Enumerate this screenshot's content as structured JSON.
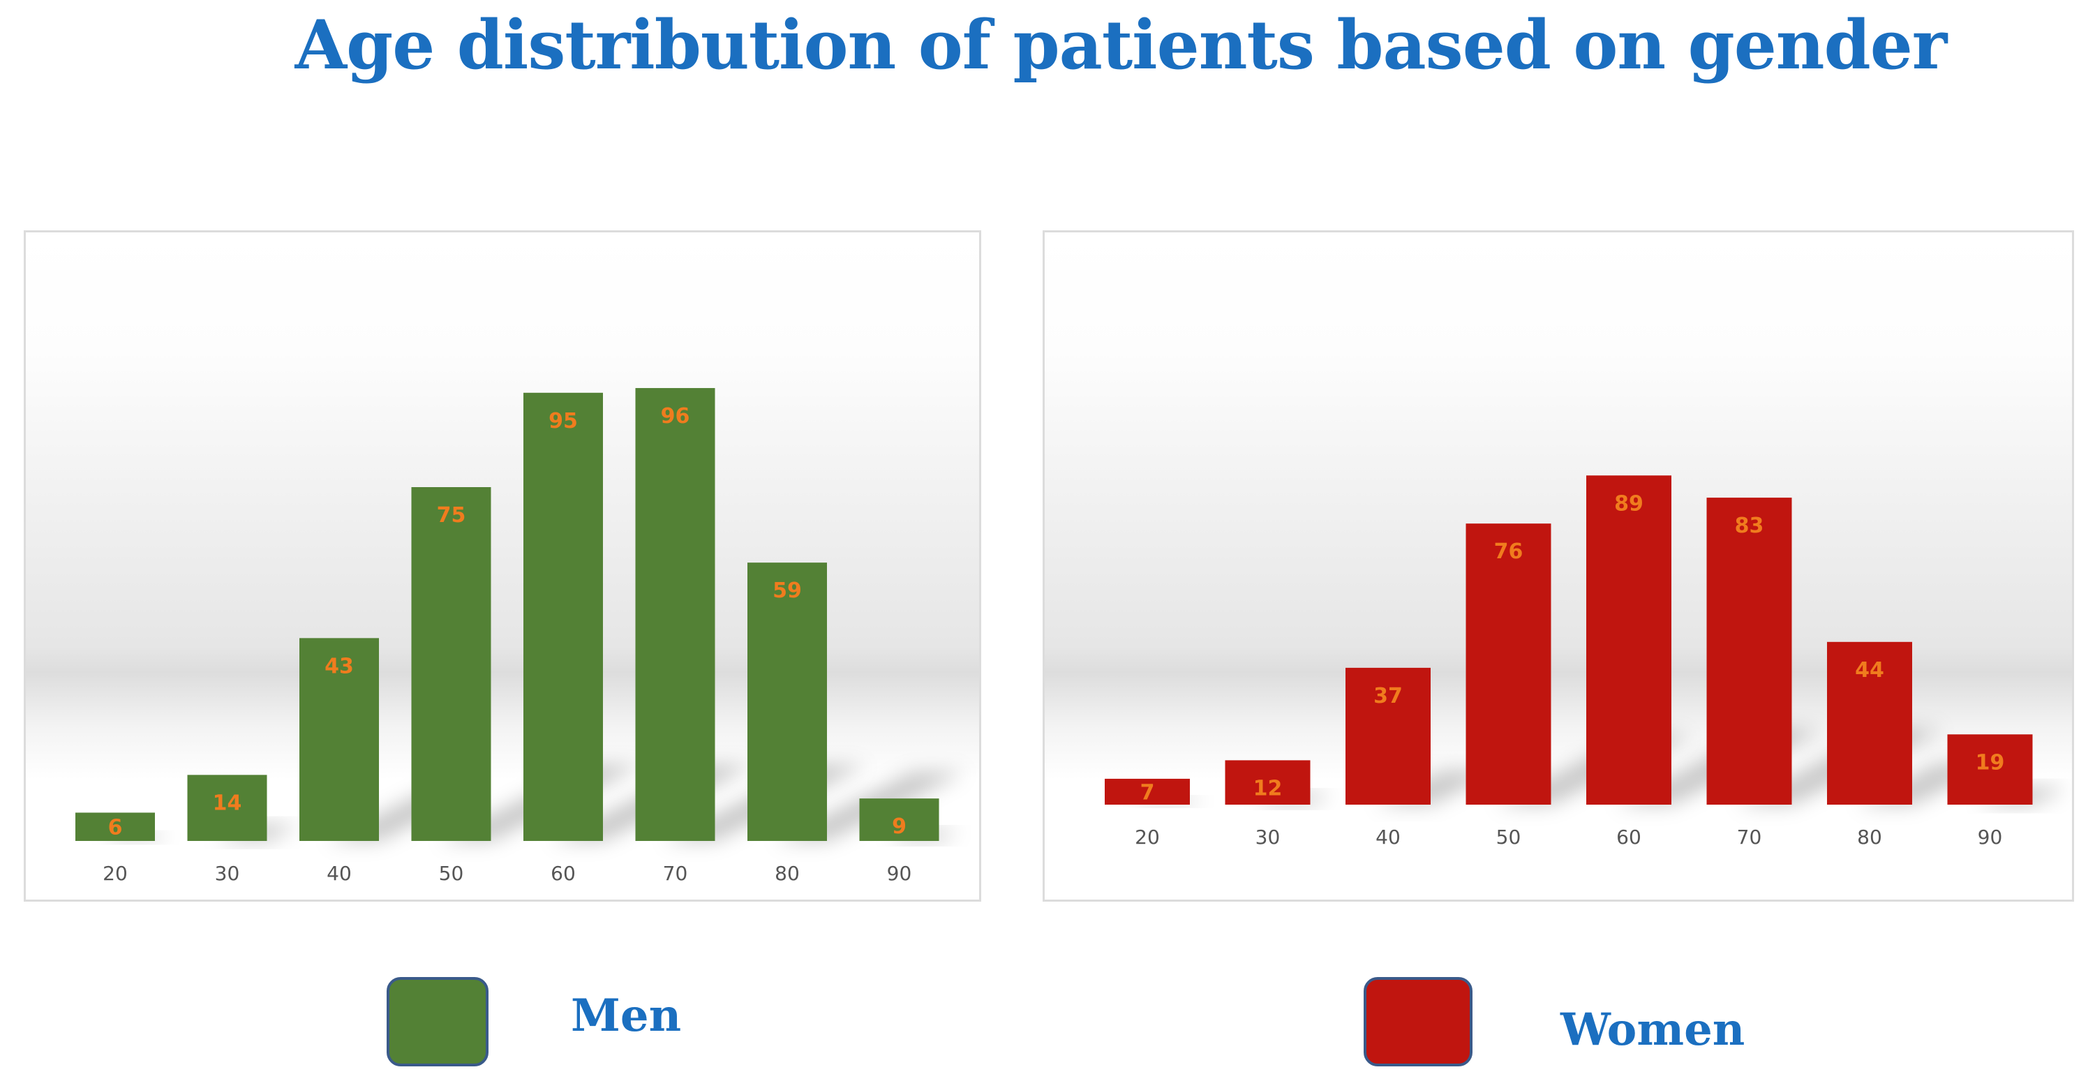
{
  "title": "Age distribution of patients based on gender",
  "colors": {
    "title": "#1b6fc0",
    "men_bar": "#538135",
    "women_bar": "#c0150f",
    "data_label": "#f07c1e",
    "tick_label": "#555555"
  },
  "legend": {
    "men": "Men",
    "women": "Women"
  },
  "chart_data": [
    {
      "type": "bar",
      "series_name": "Men",
      "categories": [
        "20",
        "30",
        "40",
        "50",
        "60",
        "70",
        "80",
        "90"
      ],
      "values": [
        6,
        14,
        43,
        75,
        95,
        96,
        59,
        9
      ],
      "ylim": [
        0,
        100
      ],
      "grid": false,
      "data_labels": true
    },
    {
      "type": "bar",
      "series_name": "Women",
      "categories": [
        "20",
        "30",
        "40",
        "50",
        "60",
        "70",
        "80",
        "90"
      ],
      "values": [
        7,
        12,
        37,
        76,
        89,
        83,
        44,
        19
      ],
      "ylim": [
        0,
        100
      ],
      "grid": false,
      "data_labels": true
    }
  ]
}
